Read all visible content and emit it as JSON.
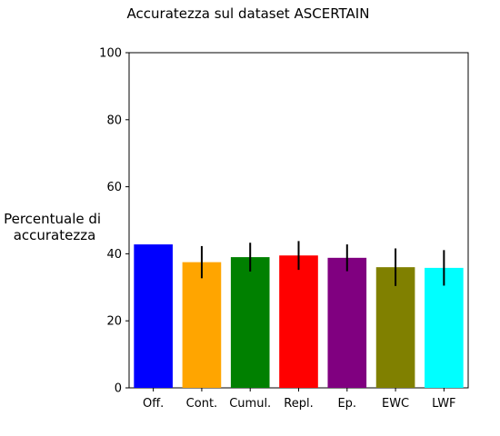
{
  "chart_data": {
    "type": "bar",
    "title": "Accuratezza sul dataset ASCERTAIN",
    "xlabel": "",
    "ylabel": "Percentuale di\naccuratezza",
    "ylabel_lines": [
      "Percentuale di",
      "accuratezza"
    ],
    "categories": [
      "Off.",
      "Cont.",
      "Cumul.",
      "Repl.",
      "Ep.",
      "EWC",
      "LWF"
    ],
    "values": [
      42.8,
      37.5,
      39.0,
      39.5,
      38.8,
      36.0,
      35.8
    ],
    "errors": [
      null,
      4.8,
      4.3,
      4.3,
      4.0,
      5.6,
      5.3
    ],
    "colors": [
      "#0000ff",
      "#ffa500",
      "#008000",
      "#ff0000",
      "#800080",
      "#808000",
      "#00ffff"
    ],
    "ylim": [
      0,
      100
    ],
    "yticks": [
      0,
      20,
      40,
      60,
      80,
      100
    ],
    "grid": false,
    "legend": "none"
  }
}
